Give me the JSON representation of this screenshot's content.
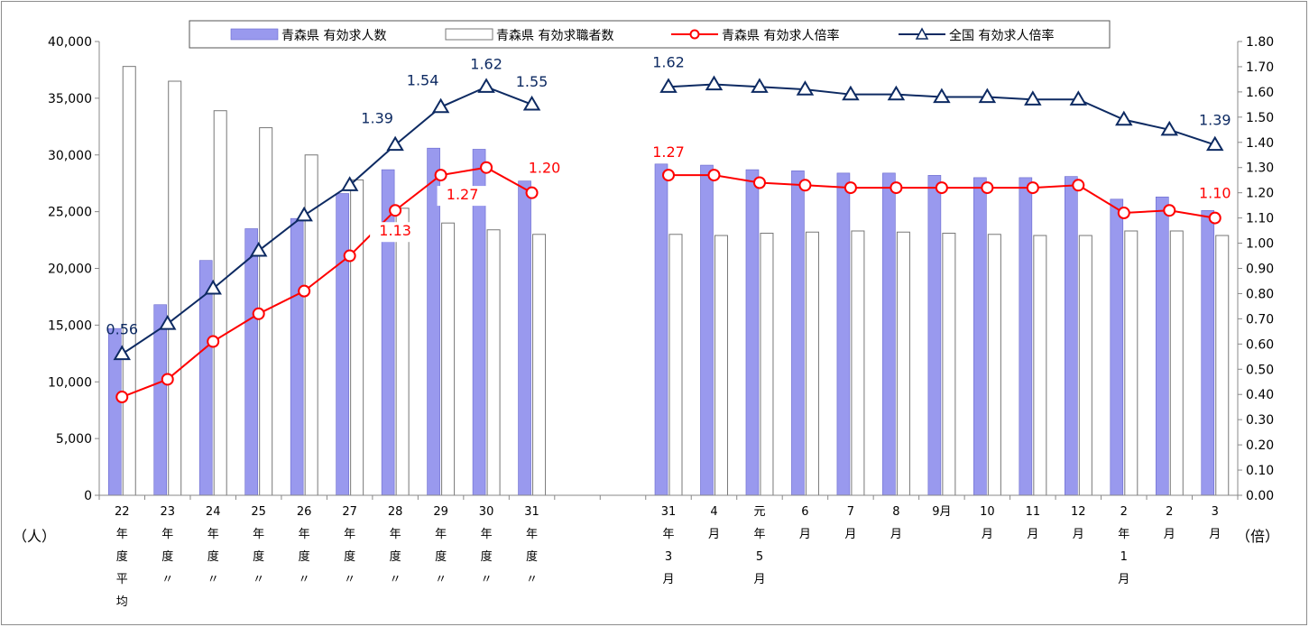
{
  "chart_data": {
    "type": "bar",
    "colors": {
      "bar_openings": "#9999ee",
      "bar_openings_stroke": "#6666cc",
      "bar_seekers": "#ffffff",
      "bar_seekers_stroke": "#777777",
      "line_aomori": "#ff0000",
      "line_national": "#0d2a62"
    },
    "legend": {
      "position": "top",
      "entries": [
        "青森県 有効求人数",
        "青森県 有効求職者数",
        "青森県 有効求人倍率",
        "全国 有効求人倍率"
      ]
    },
    "y_left": {
      "unit": "（人）",
      "min": 0,
      "max": 40000,
      "step": 5000,
      "ticks": [
        "0",
        "5,000",
        "10,000",
        "15,000",
        "20,000",
        "25,000",
        "30,000",
        "35,000",
        "40,000"
      ]
    },
    "y_right": {
      "unit": "（倍）",
      "min": 0,
      "max": 1.8,
      "step": 0.1,
      "ticks": [
        "0.00",
        "0.10",
        "0.20",
        "0.30",
        "0.40",
        "0.50",
        "0.60",
        "0.70",
        "0.80",
        "0.90",
        "1.00",
        "1.10",
        "1.20",
        "1.30",
        "1.40",
        "1.50",
        "1.60",
        "1.70",
        "1.80"
      ]
    },
    "categories": [
      [
        "22",
        "年",
        "度",
        "平",
        "均"
      ],
      [
        "23",
        "年",
        "度",
        "〃"
      ],
      [
        "24",
        "年",
        "度",
        "〃"
      ],
      [
        "25",
        "年",
        "度",
        "〃"
      ],
      [
        "26",
        "年",
        "度",
        "〃"
      ],
      [
        "27",
        "年",
        "度",
        "〃"
      ],
      [
        "28",
        "年",
        "度",
        "〃"
      ],
      [
        "29",
        "年",
        "度",
        "〃"
      ],
      [
        "30",
        "年",
        "度",
        "〃"
      ],
      [
        "31",
        "年",
        "度",
        "〃"
      ],
      [],
      [],
      [
        "31",
        "年",
        "3",
        "月"
      ],
      [
        "4",
        "月"
      ],
      [
        "元",
        "年",
        "5",
        "月"
      ],
      [
        "6",
        "月"
      ],
      [
        "7",
        "月"
      ],
      [
        "8",
        "月"
      ],
      [
        "9月"
      ],
      [
        "10",
        "月"
      ],
      [
        "11",
        "月"
      ],
      [
        "12",
        "月"
      ],
      [
        "2",
        "年",
        "1",
        "月"
      ],
      [
        "2",
        "月"
      ],
      [
        "3",
        "月"
      ]
    ],
    "series": [
      {
        "name": "青森県 有効求人数",
        "axis": "left",
        "kind": "bar",
        "values": [
          14700,
          16800,
          20700,
          23500,
          24400,
          26600,
          28700,
          30600,
          30500,
          27700,
          null,
          null,
          29200,
          29100,
          28700,
          28600,
          28400,
          28400,
          28200,
          28000,
          28000,
          28100,
          26100,
          26300,
          25100
        ]
      },
      {
        "name": "青森県 有効求職者数",
        "axis": "left",
        "kind": "bar",
        "values": [
          37800,
          36500,
          33900,
          32400,
          30000,
          27800,
          25300,
          24000,
          23400,
          23000,
          null,
          null,
          23000,
          22900,
          23100,
          23200,
          23300,
          23200,
          23100,
          23000,
          22900,
          22900,
          23300,
          23300,
          22900
        ]
      },
      {
        "name": "青森県 有効求人倍率",
        "axis": "right",
        "kind": "line",
        "values": [
          0.39,
          0.46,
          0.61,
          0.72,
          0.81,
          0.95,
          1.13,
          1.27,
          1.3,
          1.2,
          null,
          null,
          1.27,
          1.27,
          1.24,
          1.23,
          1.22,
          1.22,
          1.22,
          1.22,
          1.22,
          1.23,
          1.12,
          1.13,
          1.1
        ]
      },
      {
        "name": "全国 有効求人倍率",
        "axis": "right",
        "kind": "line",
        "values": [
          0.56,
          0.68,
          0.82,
          0.97,
          1.11,
          1.23,
          1.39,
          1.54,
          1.62,
          1.55,
          null,
          null,
          1.62,
          1.63,
          1.62,
          1.61,
          1.59,
          1.59,
          1.58,
          1.58,
          1.57,
          1.57,
          1.49,
          1.45,
          1.39
        ]
      }
    ],
    "data_labels": [
      {
        "series": 3,
        "index": 0,
        "text": "0.56"
      },
      {
        "series": 3,
        "index": 6,
        "text": "1.39"
      },
      {
        "series": 3,
        "index": 7,
        "text": "1.54"
      },
      {
        "series": 3,
        "index": 8,
        "text": "1.62"
      },
      {
        "series": 3,
        "index": 9,
        "text": "1.55"
      },
      {
        "series": 3,
        "index": 12,
        "text": "1.62"
      },
      {
        "series": 3,
        "index": 24,
        "text": "1.39"
      },
      {
        "series": 2,
        "index": 6,
        "text": "1.13"
      },
      {
        "series": 2,
        "index": 7,
        "text": "1.27"
      },
      {
        "series": 2,
        "index": 9,
        "text": "1.20"
      },
      {
        "series": 2,
        "index": 12,
        "text": "1.27"
      },
      {
        "series": 2,
        "index": 24,
        "text": "1.10"
      }
    ],
    "grid": false
  }
}
